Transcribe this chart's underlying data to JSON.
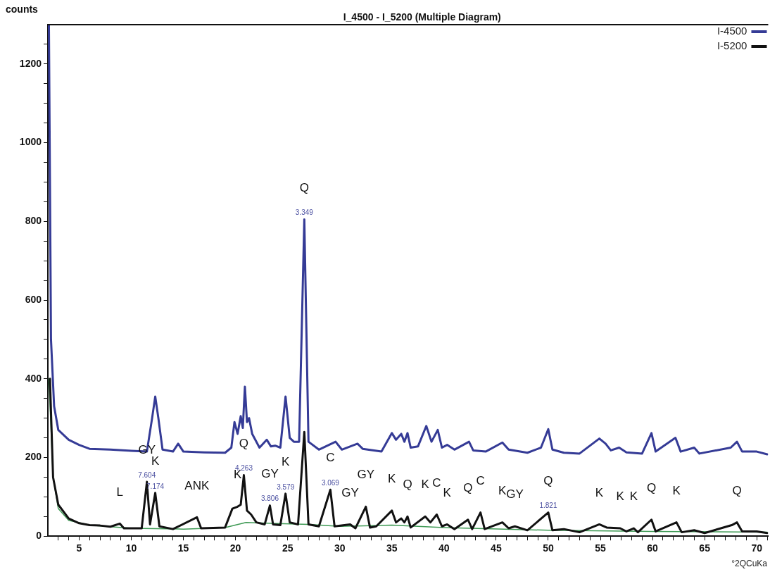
{
  "chart_data": {
    "type": "line",
    "title": "I_4500 - I_5200 (Multiple Diagram)",
    "ylabel": "counts",
    "xlabel": "°2QCuKa",
    "xlim": [
      2,
      71.1
    ],
    "ylim": [
      0,
      1300
    ],
    "xticks": [
      {
        "value": 3,
        "label": null
      },
      {
        "value": 4,
        "label": null
      },
      5,
      {
        "value": 6,
        "label": null
      },
      {
        "value": 7,
        "label": null
      },
      {
        "value": 8,
        "label": null
      },
      {
        "value": 9,
        "label": null
      },
      10,
      {
        "value": 11,
        "label": null
      },
      {
        "value": 12,
        "label": null
      },
      {
        "value": 13,
        "label": null
      },
      {
        "value": 14,
        "label": null
      },
      15,
      {
        "value": 16,
        "label": null
      },
      {
        "value": 17,
        "label": null
      },
      {
        "value": 18,
        "label": null
      },
      {
        "value": 19,
        "label": null
      },
      20,
      {
        "value": 21,
        "label": null
      },
      {
        "value": 22,
        "label": null
      },
      {
        "value": 23,
        "label": null
      },
      {
        "value": 24,
        "label": null
      },
      25,
      {
        "value": 26,
        "label": null
      },
      {
        "value": 27,
        "label": null
      },
      {
        "value": 28,
        "label": null
      },
      {
        "value": 29,
        "label": null
      },
      30,
      {
        "value": 31,
        "label": null
      },
      {
        "value": 32,
        "label": null
      },
      {
        "value": 33,
        "label": null
      },
      {
        "value": 34,
        "label": null
      },
      35,
      {
        "value": 36,
        "label": null
      },
      {
        "value": 37,
        "label": null
      },
      {
        "value": 38,
        "label": null
      },
      {
        "value": 39,
        "label": null
      },
      40,
      {
        "value": 41,
        "label": null
      },
      {
        "value": 42,
        "label": null
      },
      {
        "value": 43,
        "label": null
      },
      {
        "value": 44,
        "label": null
      },
      45,
      {
        "value": 46,
        "label": null
      },
      {
        "value": 47,
        "label": null
      },
      {
        "value": 48,
        "label": null
      },
      {
        "value": 49,
        "label": null
      },
      50,
      {
        "value": 51,
        "label": null
      },
      {
        "value": 52,
        "label": null
      },
      {
        "value": 53,
        "label": null
      },
      {
        "value": 54,
        "label": null
      },
      55,
      {
        "value": 56,
        "label": null
      },
      {
        "value": 57,
        "label": null
      },
      {
        "value": 58,
        "label": null
      },
      {
        "value": 59,
        "label": null
      },
      60,
      {
        "value": 61,
        "label": null
      },
      {
        "value": 62,
        "label": null
      },
      {
        "value": 63,
        "label": null
      },
      {
        "value": 64,
        "label": null
      },
      65,
      {
        "value": 66,
        "label": null
      },
      {
        "value": 67,
        "label": null
      },
      {
        "value": 68,
        "label": null
      },
      {
        "value": 69,
        "label": null
      },
      70,
      {
        "value": 71,
        "label": null
      }
    ],
    "yticks": [
      0,
      {
        "value": 50,
        "label": null
      },
      {
        "value": 100,
        "label": null
      },
      {
        "value": 150,
        "label": null
      },
      200,
      {
        "value": 250,
        "label": null
      },
      {
        "value": 300,
        "label": null
      },
      {
        "value": 350,
        "label": null
      },
      400,
      {
        "value": 450,
        "label": null
      },
      {
        "value": 500,
        "label": null
      },
      {
        "value": 550,
        "label": null
      },
      600,
      {
        "value": 650,
        "label": null
      },
      {
        "value": 700,
        "label": null
      },
      {
        "value": 750,
        "label": null
      },
      800,
      {
        "value": 850,
        "label": null
      },
      {
        "value": 900,
        "label": null
      },
      {
        "value": 950,
        "label": null
      },
      1000,
      {
        "value": 1050,
        "label": null
      },
      {
        "value": 1100,
        "label": null
      },
      {
        "value": 1150,
        "label": null
      },
      1200,
      {
        "value": 1250,
        "label": null
      }
    ],
    "grid": false,
    "legend": "top right",
    "marker": "none",
    "line_style": "solid",
    "series": [
      {
        "name": "I-4500",
        "color": "#353b96",
        "x": [
          2.1,
          2.3,
          2.6,
          3,
          4,
          5,
          6,
          8,
          10,
          11.5,
          12,
          12.3,
          12.6,
          13,
          14,
          14.5,
          15,
          17,
          19,
          19.6,
          19.9,
          20.2,
          20.5,
          20.7,
          20.9,
          21.1,
          21.3,
          21.6,
          22.3,
          23,
          23.4,
          23.8,
          24.3,
          24.8,
          25.2,
          25.6,
          26.1,
          26.6,
          27,
          28,
          29.6,
          30.2,
          31.7,
          32.2,
          34,
          35,
          35.4,
          35.9,
          36.2,
          36.5,
          36.8,
          37.5,
          38.3,
          38.8,
          39.4,
          39.8,
          40.3,
          41,
          42.4,
          42.8,
          44,
          45.6,
          46.2,
          48,
          49.3,
          50,
          50.4,
          51.5,
          53,
          54.9,
          55.5,
          56,
          56.8,
          57.5,
          59,
          59.9,
          60.3,
          62.2,
          62.7,
          64,
          64.5,
          67.5,
          68.1,
          68.6,
          70,
          71
        ],
        "values": [
          1300,
          500,
          330,
          270,
          245,
          232,
          222,
          220,
          217,
          215,
          300,
          355,
          300,
          220,
          215,
          235,
          215,
          213,
          212,
          225,
          290,
          260,
          305,
          275,
          380,
          290,
          300,
          260,
          225,
          245,
          228,
          230,
          225,
          355,
          250,
          240,
          240,
          805,
          240,
          220,
          240,
          220,
          235,
          222,
          215,
          262,
          245,
          260,
          240,
          262,
          225,
          228,
          280,
          240,
          270,
          225,
          232,
          220,
          240,
          218,
          215,
          238,
          220,
          212,
          225,
          272,
          220,
          212,
          210,
          248,
          235,
          218,
          225,
          213,
          210,
          262,
          215,
          250,
          215,
          225,
          210,
          225,
          240,
          215,
          215,
          208
        ]
      },
      {
        "name": "I-5200",
        "color": "#111111",
        "x": [
          2.2,
          2.5,
          3,
          4,
          5,
          6,
          7,
          8,
          8.9,
          9.3,
          11,
          11.5,
          11.8,
          12.3,
          12.7,
          14,
          16.3,
          16.7,
          19,
          19.7,
          20.2,
          20.5,
          20.8,
          21.1,
          21.5,
          22,
          22.8,
          23.3,
          23.6,
          24.3,
          24.8,
          25.2,
          26,
          26.6,
          27,
          28,
          29.1,
          29.5,
          31,
          31.5,
          32.5,
          32.9,
          33.5,
          35,
          35.4,
          35.9,
          36.2,
          36.5,
          36.8,
          38.2,
          38.7,
          39.3,
          39.8,
          40.3,
          41,
          42.3,
          42.7,
          43.5,
          43.9,
          45.6,
          46.2,
          46.8,
          48,
          50,
          50.4,
          51.5,
          53,
          54.9,
          55.6,
          56.9,
          57.5,
          58.2,
          58.6,
          59.9,
          60.3,
          62.3,
          62.8,
          64,
          65,
          67.6,
          68.1,
          68.6,
          70,
          71
        ],
        "values": [
          400,
          150,
          80,
          45,
          33,
          28,
          27,
          24,
          32,
          20,
          20,
          138,
          30,
          110,
          25,
          18,
          48,
          20,
          22,
          70,
          75,
          80,
          155,
          65,
          55,
          35,
          30,
          78,
          30,
          28,
          108,
          35,
          30,
          265,
          30,
          25,
          118,
          25,
          30,
          20,
          75,
          22,
          25,
          65,
          35,
          45,
          35,
          50,
          22,
          50,
          35,
          55,
          25,
          30,
          18,
          42,
          18,
          60,
          18,
          35,
          20,
          25,
          15,
          60,
          15,
          18,
          10,
          30,
          22,
          20,
          12,
          20,
          10,
          42,
          12,
          35,
          10,
          15,
          8,
          28,
          35,
          12,
          12,
          8
        ]
      },
      {
        "color": "#3f9a55",
        "x": [
          2.1,
          2.5,
          3,
          4,
          6,
          10,
          15,
          19,
          21,
          24,
          27,
          30,
          35,
          40,
          50,
          60,
          71
        ],
        "values": [
          400,
          150,
          70,
          40,
          28,
          20,
          18,
          22,
          35,
          32,
          30,
          25,
          28,
          22,
          15,
          12,
          10
        ]
      }
    ],
    "annotations": [
      {
        "text": "L",
        "x": 8.9,
        "y": 32
      },
      {
        "text": "GY",
        "x": 11.5,
        "y": 138
      },
      {
        "text": "K",
        "x": 12.3,
        "y": 110
      },
      {
        "text": "7.604",
        "x": 11.5,
        "y": 138
      },
      {
        "text": "7.174",
        "x": 12.3,
        "y": 110
      },
      {
        "text": "ANK",
        "x": 16.3,
        "y": 48
      },
      {
        "text": "K",
        "x": 20.2,
        "y": 75
      },
      {
        "text": "Q",
        "x": 20.8,
        "y": 155
      },
      {
        "text": "4.263",
        "x": 20.8,
        "y": 155
      },
      {
        "text": "GY",
        "x": 23.3,
        "y": 78
      },
      {
        "text": "3.806",
        "x": 23.3,
        "y": 78
      },
      {
        "text": "K",
        "x": 24.8,
        "y": 108
      },
      {
        "text": "3.579",
        "x": 24.8,
        "y": 108
      },
      {
        "text": "Q",
        "x": 26.6,
        "y": 805
      },
      {
        "text": "3.349",
        "x": 26.6,
        "y": 805
      },
      {
        "text": "C",
        "x": 29.1,
        "y": 118
      },
      {
        "text": "3.069",
        "x": 29.1,
        "y": 118
      },
      {
        "text": "GY",
        "x": 31,
        "y": 30
      },
      {
        "text": "GY",
        "x": 32.5,
        "y": 75
      },
      {
        "text": "K",
        "x": 35,
        "y": 65
      },
      {
        "text": "Q",
        "x": 36.5,
        "y": 50
      },
      {
        "text": "K",
        "x": 38.2,
        "y": 50
      },
      {
        "text": "C",
        "x": 39.3,
        "y": 55
      },
      {
        "text": "K",
        "x": 40.3,
        "y": 30
      },
      {
        "text": "Q",
        "x": 42.3,
        "y": 42
      },
      {
        "text": "C",
        "x": 43.5,
        "y": 60
      },
      {
        "text": "K",
        "x": 45.6,
        "y": 35
      },
      {
        "text": "GY",
        "x": 46.8,
        "y": 25
      },
      {
        "text": "Q",
        "x": 50,
        "y": 60
      },
      {
        "text": "1.821",
        "x": 50,
        "y": 60
      },
      {
        "text": "K",
        "x": 54.9,
        "y": 30
      },
      {
        "text": "K",
        "x": 56.9,
        "y": 20
      },
      {
        "text": "K",
        "x": 58.2,
        "y": 20
      },
      {
        "text": "Q",
        "x": 59.9,
        "y": 42
      },
      {
        "text": "K",
        "x": 62.3,
        "y": 35
      },
      {
        "text": "Q",
        "x": 68.1,
        "y": 35
      }
    ]
  }
}
